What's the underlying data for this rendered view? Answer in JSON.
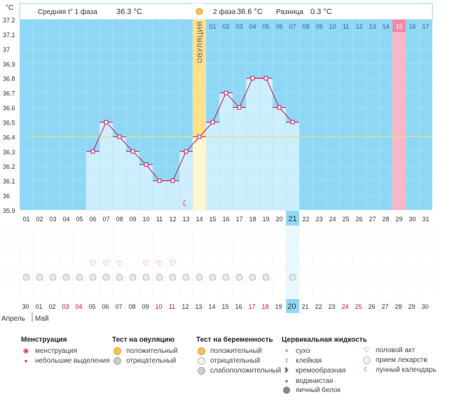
{
  "chart_data": {
    "type": "line",
    "title": "",
    "ylabel": "°C",
    "ylim": [
      35.9,
      37.2
    ],
    "y_ticks": [
      "37.2",
      "37.1",
      "37",
      "36.9",
      "36.8",
      "36.7",
      "36.6",
      "36.5",
      "36.4",
      "36.3",
      "36.2",
      "36.1",
      "36",
      "35.9"
    ],
    "cycle_days": [
      "01",
      "02",
      "03",
      "04",
      "05",
      "06",
      "07",
      "08",
      "09",
      "10",
      "11",
      "12",
      "13",
      "14",
      "15",
      "16",
      "17",
      "18",
      "19",
      "20",
      "21",
      "22",
      "23",
      "24",
      "25",
      "26",
      "27",
      "28",
      "29",
      "30",
      "31"
    ],
    "phase2_days": [
      "01",
      "02",
      "03",
      "04",
      "05",
      "06",
      "07",
      "08",
      "09",
      "10",
      "11",
      "12",
      "13",
      "14",
      "15",
      "16",
      "17"
    ],
    "calendar_dates": [
      "30",
      "01",
      "02",
      "03",
      "04",
      "05",
      "06",
      "07",
      "08",
      "09",
      "10",
      "11",
      "12",
      "13",
      "14",
      "15",
      "16",
      "17",
      "18",
      "19",
      "20",
      "21",
      "22",
      "23",
      "24",
      "25",
      "26",
      "27",
      "28",
      "29",
      "30"
    ],
    "red_dates_index": [
      3,
      4,
      10,
      11,
      17,
      18,
      24,
      25
    ],
    "months": [
      "Апрель",
      "Май"
    ],
    "series": [
      {
        "name": "Базальная температура",
        "x": [
          6,
          7,
          8,
          9,
          10,
          11,
          12,
          13,
          14,
          15,
          16,
          17,
          18,
          19,
          20,
          21
        ],
        "values": [
          36.3,
          36.5,
          36.4,
          36.3,
          36.21,
          36.1,
          36.1,
          36.3,
          36.4,
          36.5,
          36.7,
          36.6,
          36.8,
          36.8,
          36.6,
          36.5
        ]
      }
    ],
    "coverline": 36.4,
    "ovulation_day": 14,
    "highlight_day": 21,
    "pink_day": 29,
    "intercourse_days": [
      6,
      7,
      8,
      10,
      11,
      12
    ],
    "medication_days": [
      1,
      2,
      3,
      4,
      5,
      6,
      7,
      8,
      9,
      10,
      11,
      12,
      13,
      14,
      15,
      16,
      17,
      18,
      19,
      21
    ],
    "header": {
      "phase1": "Средняя t° 1 фаза",
      "phase1_value": "36.3 °C",
      "phase2": "2 фаза",
      "phase2_value": "36.6 °C",
      "diff": "Разница",
      "diff_value": "0.3 °C"
    },
    "ovulation_label": "ОВУЛЯЦИЯ"
  },
  "legend": {
    "menstruation": {
      "title": "Менструация",
      "items": [
        "менструация",
        "небольшие выделения"
      ]
    },
    "ovulation_test": {
      "title": "Тест на овуляцию",
      "items": [
        "положительный",
        "отрицательный"
      ]
    },
    "pregnancy_test": {
      "title": "Тест на беременность",
      "items": [
        "положительный",
        "отрицательный",
        "слабоположительный"
      ]
    },
    "cervical": {
      "title": "Цервикальная жидкость",
      "items": [
        "сухо",
        "клейкая",
        "кремообразная",
        "водянистая",
        "яичный белок"
      ]
    },
    "other": {
      "items": [
        "половой акт",
        "прием лекарств",
        "лунный календарь"
      ]
    }
  },
  "colors": {
    "blue": "#8fd8f5",
    "bar": "#cdeefd",
    "ovulation": "#fde28e",
    "pink": "#f9b7c8",
    "line": "#c2185b",
    "coverline": "#e8e07a"
  }
}
